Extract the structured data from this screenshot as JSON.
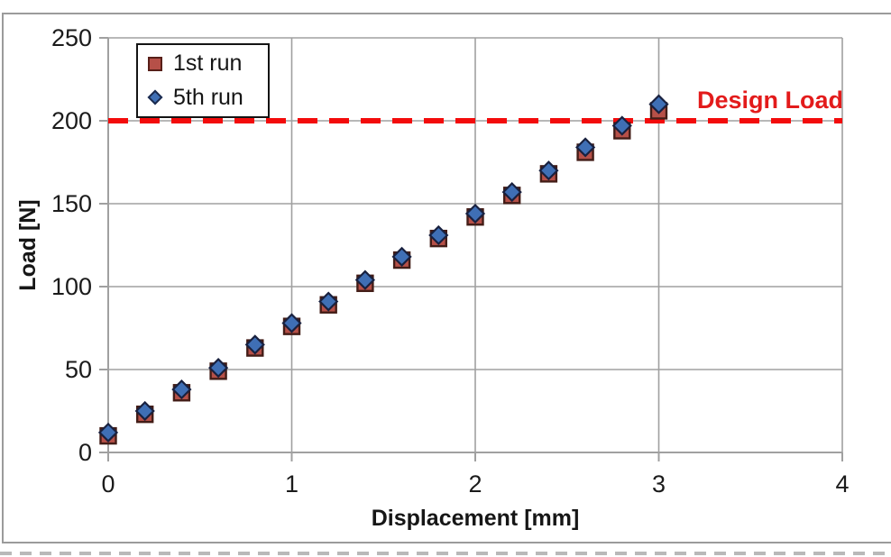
{
  "chart_data": {
    "type": "scatter",
    "title": "",
    "xlabel": "Displacement [mm]",
    "ylabel": "Load [N]",
    "xlim": [
      0,
      4
    ],
    "ylim": [
      0,
      250
    ],
    "x_ticks": [
      0,
      1,
      2,
      3,
      4
    ],
    "y_ticks": [
      0,
      50,
      100,
      150,
      200,
      250
    ],
    "grid": true,
    "legend_position": "top-left",
    "x": [
      0.0,
      0.2,
      0.4,
      0.6,
      0.8,
      1.0,
      1.2,
      1.4,
      1.6,
      1.8,
      2.0,
      2.2,
      2.4,
      2.6,
      2.8,
      3.0
    ],
    "series": [
      {
        "name": "1st run",
        "marker": "square",
        "fill": "#b65048",
        "edge": "#431d17",
        "values": [
          10,
          23,
          36,
          49,
          63,
          76,
          89,
          102,
          116,
          129,
          142,
          155,
          168,
          181,
          194,
          206
        ]
      },
      {
        "name": "5th run",
        "marker": "diamond",
        "fill": "#3f6fb5",
        "edge": "#19213f",
        "values": [
          12,
          25,
          38,
          51,
          65,
          78,
          91,
          104,
          118,
          131,
          144,
          157,
          170,
          184,
          197,
          210
        ]
      }
    ],
    "reference_line": {
      "label": "Design Load",
      "value": 200,
      "color": "#f30b0b",
      "style": "dashed"
    },
    "colors": {
      "grid": "#a0a0a0",
      "tick_text": "#1b1b1b",
      "frame": "#9b9b9b",
      "legend_border": "#141414"
    }
  }
}
